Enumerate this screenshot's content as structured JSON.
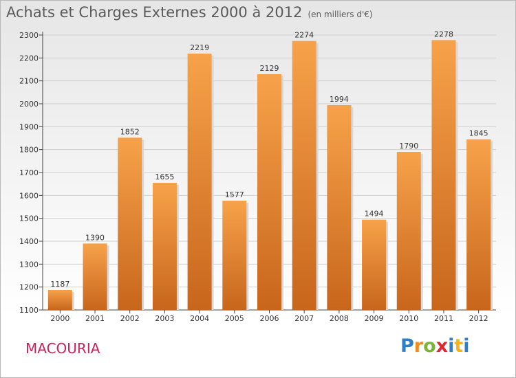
{
  "title": "Achats et Charges Externes 2000 à 2012",
  "subtitle": "(en milliers d'€)",
  "city": "MACOURIA",
  "logo": {
    "letters": [
      "P",
      "r",
      "o",
      "x",
      "i",
      "t",
      "i"
    ],
    "colors": [
      "#2f7fc8",
      "#f08a1c",
      "#7ab53a",
      "#e0262e",
      "#2f7fc8",
      "#f5b21a",
      "#2f7fc8"
    ]
  },
  "colors": {
    "bar_light": "#f7a24a",
    "bar_dark": "#c8661c",
    "grid": "#d0d0d0",
    "axis": "#444444",
    "text": "#333333"
  },
  "chart_data": {
    "type": "bar",
    "categories": [
      "2000",
      "2001",
      "2002",
      "2003",
      "2004",
      "2005",
      "2006",
      "2007",
      "2008",
      "2009",
      "2010",
      "2011",
      "2012"
    ],
    "values": [
      1187,
      1390,
      1852,
      1655,
      2219,
      1577,
      2129,
      2274,
      1994,
      1494,
      1790,
      2278,
      1845
    ],
    "ylim": [
      1100,
      2300
    ],
    "yticks": [
      1100,
      1200,
      1300,
      1400,
      1500,
      1600,
      1700,
      1800,
      1900,
      2000,
      2100,
      2200,
      2300
    ],
    "grid": true
  }
}
